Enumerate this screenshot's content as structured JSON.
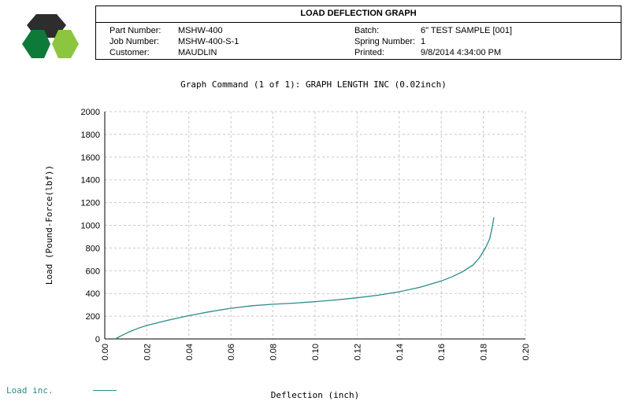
{
  "header": {
    "report_title": "LOAD DEFLECTION GRAPH",
    "fields": {
      "part_number_label": "Part Number:",
      "part_number": "MSHW-400",
      "job_number_label": "Job Number:",
      "job_number": "MSHW-400-S-1",
      "customer_label": "Customer:",
      "customer": "MAUDLIN",
      "batch_label": "Batch:",
      "batch": "6\" TEST SAMPLE [001]",
      "spring_number_label": "Spring Number:",
      "spring_number": "1",
      "printed_label": "Printed:",
      "printed": "9/8/2014 4:34:00 PM"
    }
  },
  "colors": {
    "series": "#2b8c8c",
    "grid": "#c8c8c8"
  },
  "chart_data": {
    "type": "line",
    "title": "Graph Command (1 of 1): GRAPH LENGTH INC (0.02inch)",
    "xlabel": "Deflection (inch)",
    "ylabel": "Load (Pound-Force(lbf))",
    "xlim": [
      0,
      0.2
    ],
    "ylim": [
      0,
      2000
    ],
    "xticks": [
      "0.00",
      "0.02",
      "0.04",
      "0.06",
      "0.08",
      "0.10",
      "0.12",
      "0.14",
      "0.16",
      "0.18",
      "0.20"
    ],
    "yticks": [
      "0",
      "200",
      "400",
      "600",
      "800",
      "1000",
      "1200",
      "1400",
      "1600",
      "1800",
      "2000"
    ],
    "grid": true,
    "legend_position": "bottom-left",
    "series": [
      {
        "name": "Load inc.",
        "x": [
          0.005,
          0.008,
          0.012,
          0.016,
          0.02,
          0.03,
          0.04,
          0.05,
          0.06,
          0.07,
          0.08,
          0.09,
          0.1,
          0.11,
          0.12,
          0.13,
          0.14,
          0.15,
          0.16,
          0.165,
          0.17,
          0.175,
          0.178,
          0.181,
          0.183,
          0.184,
          0.185
        ],
        "y": [
          0,
          30,
          65,
          95,
          118,
          165,
          205,
          240,
          270,
          292,
          305,
          315,
          328,
          343,
          362,
          385,
          415,
          455,
          510,
          545,
          590,
          650,
          710,
          800,
          880,
          960,
          1070
        ]
      }
    ]
  }
}
